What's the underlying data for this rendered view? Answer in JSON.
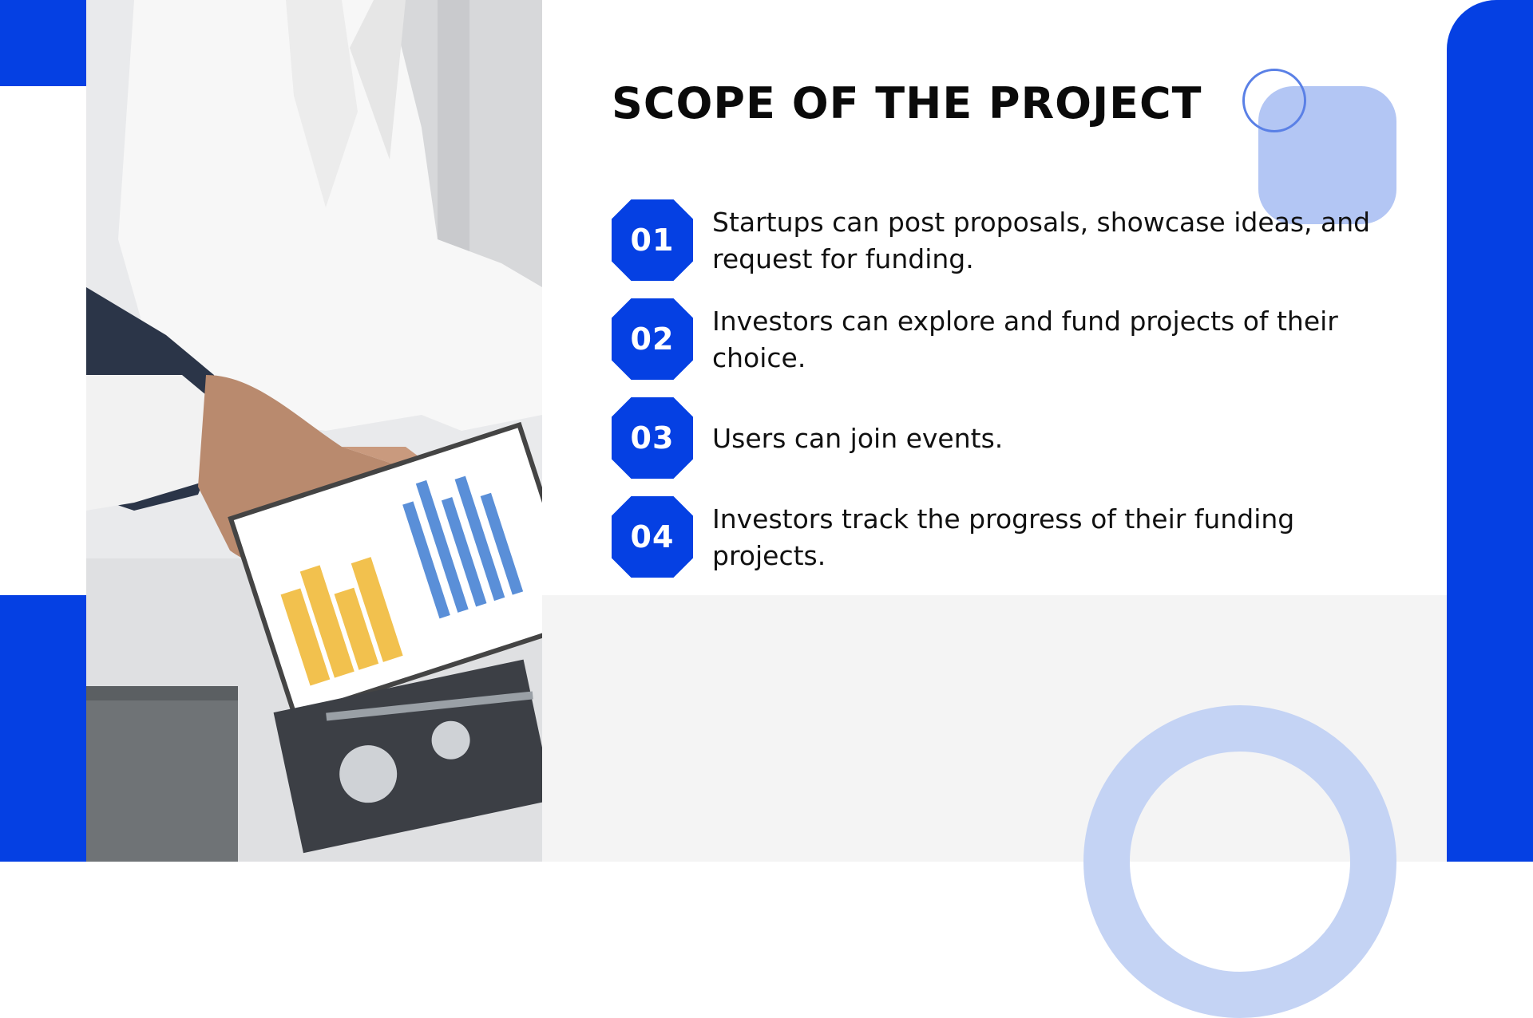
{
  "slide": {
    "title": "SCOPE OF THE PROJECT",
    "items": [
      {
        "number": "01",
        "text": "Startups can post proposals, showcase ideas, and request for funding."
      },
      {
        "number": "02",
        "text": "Investors can explore and fund projects of their choice."
      },
      {
        "number": "03",
        "text": "Users can join events."
      },
      {
        "number": "04",
        "text": "Investors track the progress of their funding projects."
      }
    ]
  },
  "colors": {
    "accent": "#0540e3",
    "accent_light": "#b3c6f4",
    "band": "#f4f4f4",
    "text": "#111111"
  },
  "icons": {
    "photo": "business-meeting-charts-photo"
  }
}
